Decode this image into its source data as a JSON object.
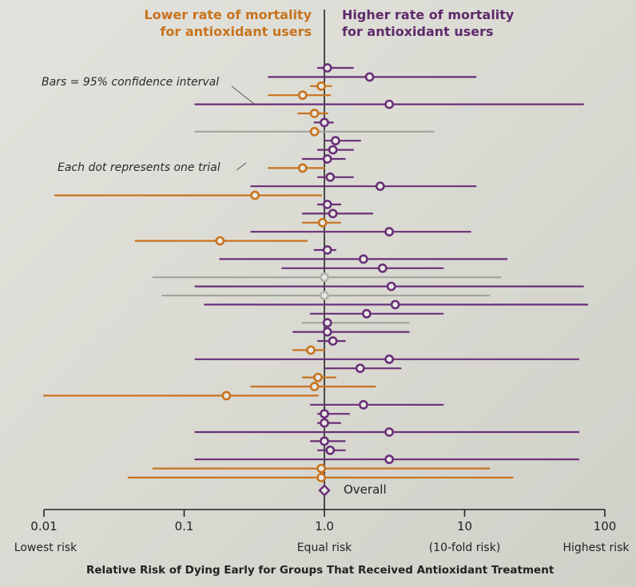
{
  "header": {
    "lower_line1": "Lower rate of mortality",
    "lower_line2": "for antioxidant users",
    "higher_line1": "Higher rate of mortality",
    "higher_line2": "for antioxidant users"
  },
  "annotations": {
    "bars": "Bars = 95% confidence interval",
    "dot": "Each dot represents one trial"
  },
  "colors": {
    "lower": "#c8731e",
    "higher": "#6a2f78",
    "neutral": "#b4b4ae",
    "axis": "#222222",
    "gray_line": "#a3a49c"
  },
  "chart_data": {
    "type": "forest-plot",
    "xlabel": "Relative Risk of Dying Early for Groups That Received Antioxidant Treatment",
    "xscale": "log",
    "xlim": [
      0.01,
      100
    ],
    "reference_line": 1.0,
    "ticks": [
      {
        "value": 0.01,
        "label": "0.01",
        "sublabel": "Lowest risk"
      },
      {
        "value": 0.1,
        "label": "0.1",
        "sublabel": ""
      },
      {
        "value": 1.0,
        "label": "1.0",
        "sublabel": "Equal risk"
      },
      {
        "value": 10,
        "label": "10",
        "sublabel": "(10-fold risk)"
      },
      {
        "value": 100,
        "label": "100",
        "sublabel": "Highest risk"
      }
    ],
    "trials": [
      {
        "rr": 1.05,
        "lo": 0.9,
        "hi": 1.6,
        "color": "higher",
        "line": "higher"
      },
      {
        "rr": 2.1,
        "lo": 0.4,
        "hi": 12,
        "color": "higher",
        "line": "higher"
      },
      {
        "rr": 0.95,
        "lo": 0.8,
        "hi": 1.12,
        "color": "lower",
        "line": "lower"
      },
      {
        "rr": 0.7,
        "lo": 0.4,
        "hi": 1.1,
        "color": "lower",
        "line": "lower"
      },
      {
        "rr": 2.9,
        "lo": 0.12,
        "hi": 70,
        "color": "higher",
        "line": "higher"
      },
      {
        "rr": 0.85,
        "lo": 0.65,
        "hi": 1.05,
        "color": "lower",
        "line": "lower"
      },
      {
        "rr": 1.0,
        "lo": 0.85,
        "hi": 1.15,
        "color": "higher",
        "line": "higher"
      },
      {
        "rr": 0.85,
        "lo": 0.12,
        "hi": 6,
        "color": "lower",
        "line": "gray"
      },
      {
        "rr": 1.2,
        "lo": 1.0,
        "hi": 1.8,
        "color": "higher",
        "line": "higher"
      },
      {
        "rr": 1.15,
        "lo": 0.9,
        "hi": 1.6,
        "color": "higher",
        "line": "higher"
      },
      {
        "rr": 1.05,
        "lo": 0.7,
        "hi": 1.4,
        "color": "higher",
        "line": "higher"
      },
      {
        "rr": 0.7,
        "lo": 0.4,
        "hi": 1.0,
        "color": "lower",
        "line": "lower"
      },
      {
        "rr": 1.1,
        "lo": 0.9,
        "hi": 1.6,
        "color": "higher",
        "line": "higher"
      },
      {
        "rr": 2.5,
        "lo": 0.3,
        "hi": 12,
        "color": "higher",
        "line": "higher"
      },
      {
        "rr": 0.32,
        "lo": 0.012,
        "hi": 0.95,
        "color": "lower",
        "line": "lower"
      },
      {
        "rr": 1.05,
        "lo": 0.9,
        "hi": 1.3,
        "color": "higher",
        "line": "higher"
      },
      {
        "rr": 1.15,
        "lo": 0.7,
        "hi": 2.2,
        "color": "higher",
        "line": "higher"
      },
      {
        "rr": 0.97,
        "lo": 0.7,
        "hi": 1.3,
        "color": "lower",
        "line": "lower"
      },
      {
        "rr": 2.9,
        "lo": 0.3,
        "hi": 11,
        "color": "higher",
        "line": "higher"
      },
      {
        "rr": 0.18,
        "lo": 0.045,
        "hi": 0.75,
        "color": "lower",
        "line": "lower"
      },
      {
        "rr": 1.05,
        "lo": 0.85,
        "hi": 1.2,
        "color": "higher",
        "line": "higher"
      },
      {
        "rr": 1.9,
        "lo": 0.18,
        "hi": 20,
        "color": "higher",
        "line": "higher"
      },
      {
        "rr": 2.6,
        "lo": 0.5,
        "hi": 7,
        "color": "higher",
        "line": "higher"
      },
      {
        "rr": 1.0,
        "lo": 0.06,
        "hi": 18,
        "color": "neutral",
        "line": "gray"
      },
      {
        "rr": 3.0,
        "lo": 0.12,
        "hi": 70,
        "color": "higher",
        "line": "higher"
      },
      {
        "rr": 1.0,
        "lo": 0.07,
        "hi": 15,
        "color": "neutral",
        "line": "gray"
      },
      {
        "rr": 3.2,
        "lo": 0.14,
        "hi": 75,
        "color": "higher",
        "line": "higher"
      },
      {
        "rr": 2.0,
        "lo": 0.8,
        "hi": 7,
        "color": "higher",
        "line": "higher"
      },
      {
        "rr": 1.05,
        "lo": 0.7,
        "hi": 4,
        "color": "higher",
        "line": "gray"
      },
      {
        "rr": 1.05,
        "lo": 0.6,
        "hi": 4,
        "color": "higher",
        "line": "higher"
      },
      {
        "rr": 1.15,
        "lo": 0.9,
        "hi": 1.4,
        "color": "higher",
        "line": "higher"
      },
      {
        "rr": 0.8,
        "lo": 0.6,
        "hi": 1.0,
        "color": "lower",
        "line": "lower"
      },
      {
        "rr": 2.9,
        "lo": 0.12,
        "hi": 65,
        "color": "higher",
        "line": "higher"
      },
      {
        "rr": 1.8,
        "lo": 1.0,
        "hi": 3.5,
        "color": "higher",
        "line": "higher"
      },
      {
        "rr": 0.9,
        "lo": 0.7,
        "hi": 1.2,
        "color": "lower",
        "line": "lower"
      },
      {
        "rr": 0.85,
        "lo": 0.3,
        "hi": 2.3,
        "color": "lower",
        "line": "lower"
      },
      {
        "rr": 0.2,
        "lo": 0.01,
        "hi": 0.9,
        "color": "lower",
        "line": "lower"
      },
      {
        "rr": 1.9,
        "lo": 0.8,
        "hi": 7,
        "color": "higher",
        "line": "higher"
      },
      {
        "rr": 1.0,
        "lo": 0.9,
        "hi": 1.5,
        "color": "higher",
        "line": "higher"
      },
      {
        "rr": 1.0,
        "lo": 0.9,
        "hi": 1.3,
        "color": "higher",
        "line": "higher"
      },
      {
        "rr": 2.9,
        "lo": 0.12,
        "hi": 65,
        "color": "higher",
        "line": "higher"
      },
      {
        "rr": 1.0,
        "lo": 0.8,
        "hi": 1.4,
        "color": "higher",
        "line": "higher"
      },
      {
        "rr": 1.1,
        "lo": 0.9,
        "hi": 1.4,
        "color": "higher",
        "line": "higher"
      },
      {
        "rr": 2.9,
        "lo": 0.12,
        "hi": 65,
        "color": "higher",
        "line": "higher"
      },
      {
        "rr": 0.95,
        "lo": 0.06,
        "hi": 15,
        "color": "lower",
        "line": "lower"
      },
      {
        "rr": 0.95,
        "lo": 0.04,
        "hi": 22,
        "color": "lower",
        "line": "lower"
      }
    ],
    "overall": {
      "rr": 1.0,
      "label": "Overall"
    }
  }
}
